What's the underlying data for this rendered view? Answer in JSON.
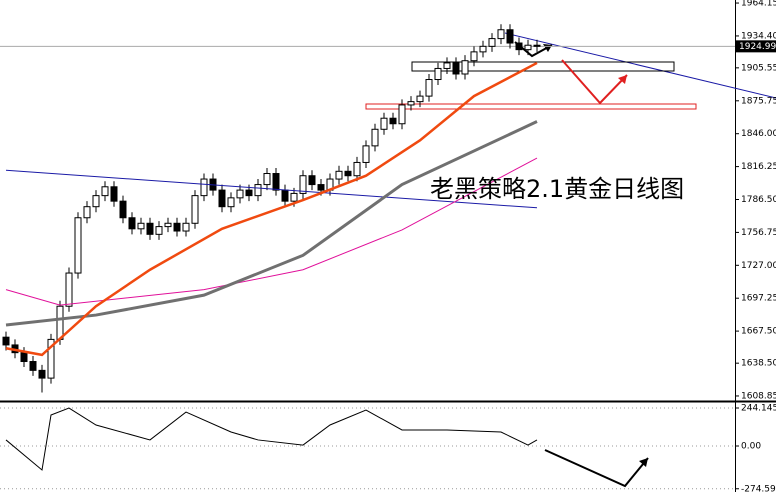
{
  "chart_data": {
    "type": "candlestick",
    "title": "老黑策略2.1黄金日线图",
    "last_price": 1924.99,
    "ylim": [
      1605.2,
      1966.9
    ],
    "yticks": [
      1964.15,
      {
        "value": 1934.4,
        "label": "1934.40"
      },
      1905.55,
      1875.75,
      {
        "value": 1846,
        "label": "1846.00"
      },
      1816.25,
      {
        "value": 1786.5,
        "label": "1786.50"
      },
      1756.75,
      {
        "value": 1727,
        "label": "1727.00"
      },
      1697.25,
      {
        "value": 1667.5,
        "label": "1667.50"
      },
      {
        "value": 1638.5,
        "label": "1638.50"
      },
      1608.85
    ],
    "open": [
      1662,
      1655,
      1648,
      1640,
      1632,
      1625,
      1660,
      1690,
      1720,
      1770,
      1780,
      1790,
      1798,
      1785,
      1770,
      1760,
      1765,
      1755,
      1762,
      1765,
      1758,
      1765,
      1790,
      1805,
      1795,
      1780,
      1788,
      1795,
      1790,
      1800,
      1810,
      1795,
      1785,
      1792,
      1808,
      1800,
      1795,
      1805,
      1812,
      1808,
      1820,
      1835,
      1850,
      1860,
      1855,
      1872,
      1875,
      1880,
      1895,
      1905,
      1910,
      1900,
      1912,
      1920,
      1925,
      1932,
      1940,
      1928,
      1922,
      1926
    ],
    "high": [
      1667,
      1660,
      1653,
      1645,
      1637,
      1665,
      1695,
      1725,
      1775,
      1785,
      1795,
      1803,
      1803,
      1790,
      1775,
      1770,
      1770,
      1767,
      1770,
      1770,
      1770,
      1795,
      1810,
      1810,
      1800,
      1793,
      1800,
      1800,
      1805,
      1815,
      1815,
      1800,
      1797,
      1813,
      1813,
      1805,
      1810,
      1817,
      1817,
      1825,
      1840,
      1855,
      1865,
      1865,
      1877,
      1880,
      1885,
      1900,
      1910,
      1915,
      1915,
      1917,
      1925,
      1930,
      1937,
      1945,
      1945,
      1933,
      1931,
      1931
    ],
    "low": [
      1650,
      1643,
      1635,
      1627,
      1612,
      1620,
      1655,
      1685,
      1715,
      1765,
      1775,
      1785,
      1780,
      1765,
      1755,
      1755,
      1750,
      1750,
      1757,
      1753,
      1753,
      1760,
      1785,
      1790,
      1775,
      1775,
      1783,
      1785,
      1785,
      1795,
      1790,
      1780,
      1780,
      1787,
      1795,
      1790,
      1790,
      1800,
      1803,
      1803,
      1815,
      1830,
      1845,
      1850,
      1850,
      1867,
      1870,
      1875,
      1890,
      1900,
      1895,
      1895,
      1907,
      1915,
      1920,
      1927,
      1923,
      1917,
      1917,
      1920
    ],
    "close": [
      1655,
      1648,
      1640,
      1632,
      1625,
      1660,
      1690,
      1720,
      1770,
      1780,
      1790,
      1798,
      1785,
      1770,
      1760,
      1765,
      1755,
      1762,
      1765,
      1758,
      1765,
      1790,
      1805,
      1795,
      1780,
      1788,
      1795,
      1790,
      1800,
      1810,
      1795,
      1785,
      1792,
      1808,
      1800,
      1795,
      1805,
      1812,
      1808,
      1820,
      1835,
      1850,
      1860,
      1855,
      1872,
      1875,
      1880,
      1895,
      1905,
      1910,
      1900,
      1912,
      1920,
      1925,
      1932,
      1940,
      1928,
      1922,
      1926,
      1925
    ],
    "overlays": [
      {
        "color": "#1a1aa6",
        "width": 1,
        "x": [
          0,
          59
        ],
        "values": [
          1813,
          1779
        ]
      },
      {
        "color": "#e0109a",
        "width": 1,
        "x": [
          0,
          6,
          22,
          33,
          44,
          59
        ],
        "values": [
          1705,
          1691,
          1705,
          1723,
          1759,
          1824
        ]
      },
      {
        "color": "#707070",
        "width": 3,
        "x": [
          0,
          10,
          22,
          33,
          44,
          59
        ],
        "values": [
          1673,
          1682,
          1700,
          1736,
          1800,
          1857
        ]
      },
      {
        "color": "#f04a10",
        "width": 2.5,
        "x": [
          0,
          4,
          10,
          16,
          24,
          33,
          40,
          46,
          52,
          59
        ],
        "values": [
          1652,
          1646,
          1690,
          1723,
          1760,
          1786,
          1808,
          1840,
          1880,
          1910
        ]
      }
    ],
    "indicator": {
      "color": "#000000",
      "ylim": [
        -295.4,
        282.7
      ],
      "yticks": [
        244.1452,
        {
          "value": 0,
          "label": "0.00"
        },
        -274.59
      ],
      "x": [
        0,
        4,
        5,
        7,
        10,
        16,
        20,
        25,
        28,
        33,
        36,
        40,
        44,
        49,
        55,
        58,
        59
      ],
      "values": [
        39,
        -154,
        199,
        244,
        135,
        39,
        218,
        90,
        39,
        6,
        135,
        231,
        103,
        103,
        90,
        6,
        39
      ]
    }
  }
}
